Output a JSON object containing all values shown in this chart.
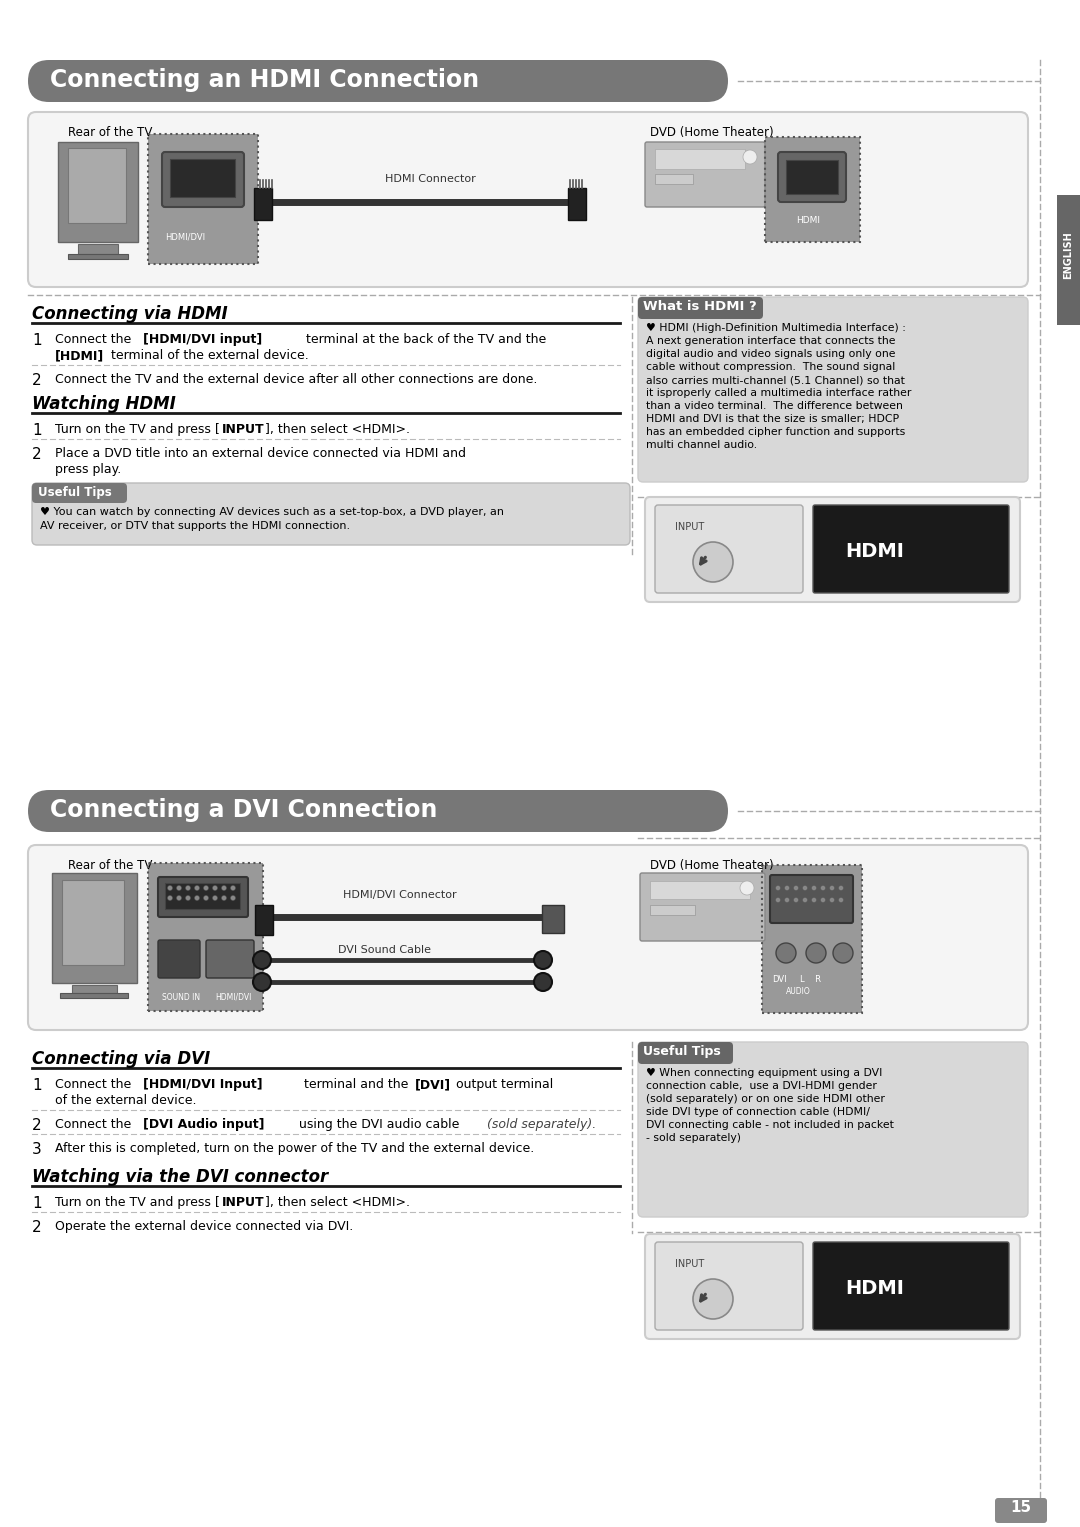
{
  "page_bg": "#f2f2f2",
  "title1": "Connecting an HDMI Connection",
  "title2": "Connecting a DVI Connection",
  "section1_heading1": "Connecting via HDMI",
  "section1_heading2": "Watching HDMI",
  "section2_heading1": "Connecting via DVI",
  "section2_heading2": "Watching via the DVI connector",
  "what_is_hdmi_title": "What is HDMI ?",
  "what_is_hdmi_text": "♥ HDMI (High-Definition Multimedia Interface) :\nA next generation interface that connects the\ndigital audio and video signals using only one\ncable without compression.  The sound signal\nalso carries multi-channel (5.1 Channel) so that\nit isproperly called a multimedia interface rather\nthan a video terminal.  The difference between\nHDMI and DVI is that the size is smaller; HDCP\nhas an embedded cipher function and supports\nmulti channel audio.",
  "useful_tips_title": "Useful Tips",
  "useful_tips_hdmi": "♥ You can watch by connecting AV devices such as a set-top-box, a DVD player, an\nAV receiver, or DTV that supports the HDMI connection.",
  "useful_tips_dvi": "♥ When connecting equipment using a DVI\nconnection cable,  use a DVI-HDMI gender\n(sold separately) or on one side HDMI other\nside DVI type of connection cable (HDMI/\nDVI connecting cable - not included in packet\n- sold separately)",
  "rear_tv": "Rear of the TV",
  "dvd_home": "DVD (Home Theater)",
  "hdmi_connector_label": "HDMI Connector",
  "hdmidvi_connector_label": "HDMI/DVI Connector",
  "dvi_sound_cable_label": "DVI Sound Cable",
  "english_tab": "ENGLISH",
  "page_number": "15"
}
